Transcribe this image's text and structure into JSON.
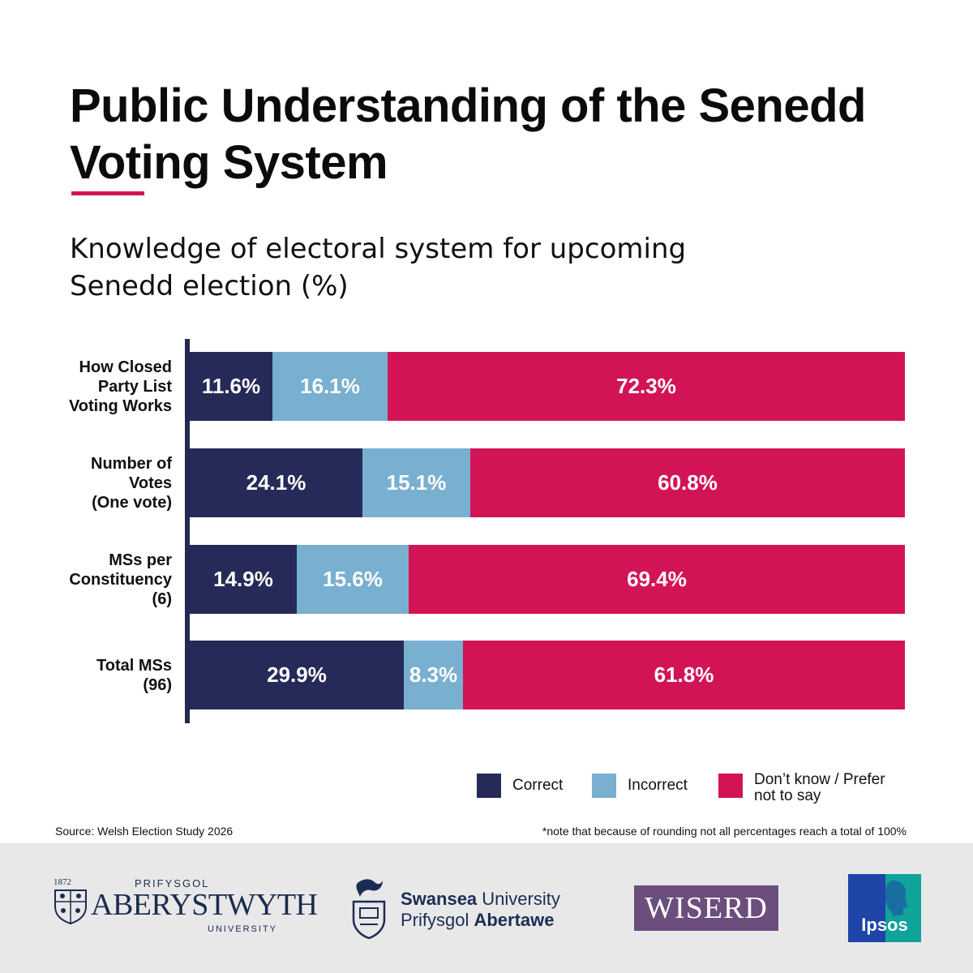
{
  "title": "Public Understanding of the Senedd Voting System",
  "colors": {
    "correct": "#262a58",
    "incorrect": "#79afcf",
    "dont_know": "#d21456",
    "accent": "#d21456"
  },
  "chart_data": {
    "type": "bar",
    "orientation": "horizontal-stacked",
    "title": "Knowledge of electoral system for upcoming Senedd election (%)",
    "categories": [
      "How Closed Party List Voting Works",
      "Number of Votes (One vote)",
      "MSs per Constituency (6)",
      "Total MSs (96)"
    ],
    "category_lines": [
      [
        "How Closed",
        "Party List",
        "Voting Works"
      ],
      [
        "Number of",
        "Votes",
        "(One vote)"
      ],
      [
        "MSs per",
        "Constituency",
        "(6)"
      ],
      [
        "Total MSs",
        "(96)"
      ]
    ],
    "series": [
      {
        "name": "Correct",
        "values": [
          11.6,
          24.1,
          14.9,
          29.9
        ],
        "labels": [
          "11.6%",
          "24.1%",
          "14.9%",
          "29.9%"
        ]
      },
      {
        "name": "Incorrect",
        "values": [
          16.1,
          15.1,
          15.6,
          8.3
        ],
        "labels": [
          "16.1%",
          "15.1%",
          "15.6%",
          "8.3%"
        ]
      },
      {
        "name": "Don’t know / Prefer not to say",
        "values": [
          72.3,
          60.8,
          69.4,
          61.8
        ],
        "labels": [
          "72.3%",
          "60.8%",
          "69.4%",
          "61.8%"
        ]
      }
    ],
    "xlim": [
      0,
      100
    ],
    "grid": false,
    "legend_position": "bottom-right"
  },
  "legend": {
    "correct": "Correct",
    "incorrect": "Incorrect",
    "dont_know_line1": "Don’t know / Prefer",
    "dont_know_line2": "not to say"
  },
  "source": "Source: Welsh Election Study 2026",
  "note": "*note that because of rounding not all percentages reach a total of 100%",
  "logos": {
    "aberystwyth": {
      "year": "1872",
      "prefix": "PRIFYSGOL",
      "name": "ABERYSTWYTH",
      "suffix": "UNIVERSITY"
    },
    "swansea": {
      "line1_bold": "Swansea",
      "line1_rest": " University",
      "line2_rest": "Prifysgol ",
      "line2_bold": "Abertawe"
    },
    "wiserd": "WISERD",
    "ipsos": "Ipsos"
  }
}
